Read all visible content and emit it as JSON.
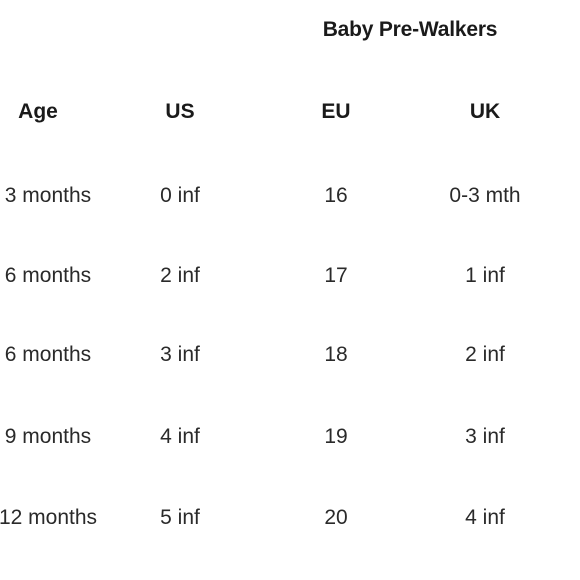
{
  "table": {
    "caption": "Baby Pre-Walkers",
    "headers": {
      "age": "Age",
      "us": "US",
      "eu": "EU",
      "uk": "UK"
    },
    "rows": [
      {
        "age": "3 months",
        "us": "0 inf",
        "eu": "16",
        "uk": "0-3 mth"
      },
      {
        "age": "6 months",
        "us": "2 inf",
        "eu": "17",
        "uk": "1 inf"
      },
      {
        "age": "6 months",
        "us": "3 inf",
        "eu": "18",
        "uk": "2 inf"
      },
      {
        "age": "9 months",
        "us": "4 inf",
        "eu": "19",
        "uk": "3 inf"
      },
      {
        "age": "12 months",
        "us": "5 inf",
        "eu": "20",
        "uk": "4 inf"
      }
    ]
  }
}
